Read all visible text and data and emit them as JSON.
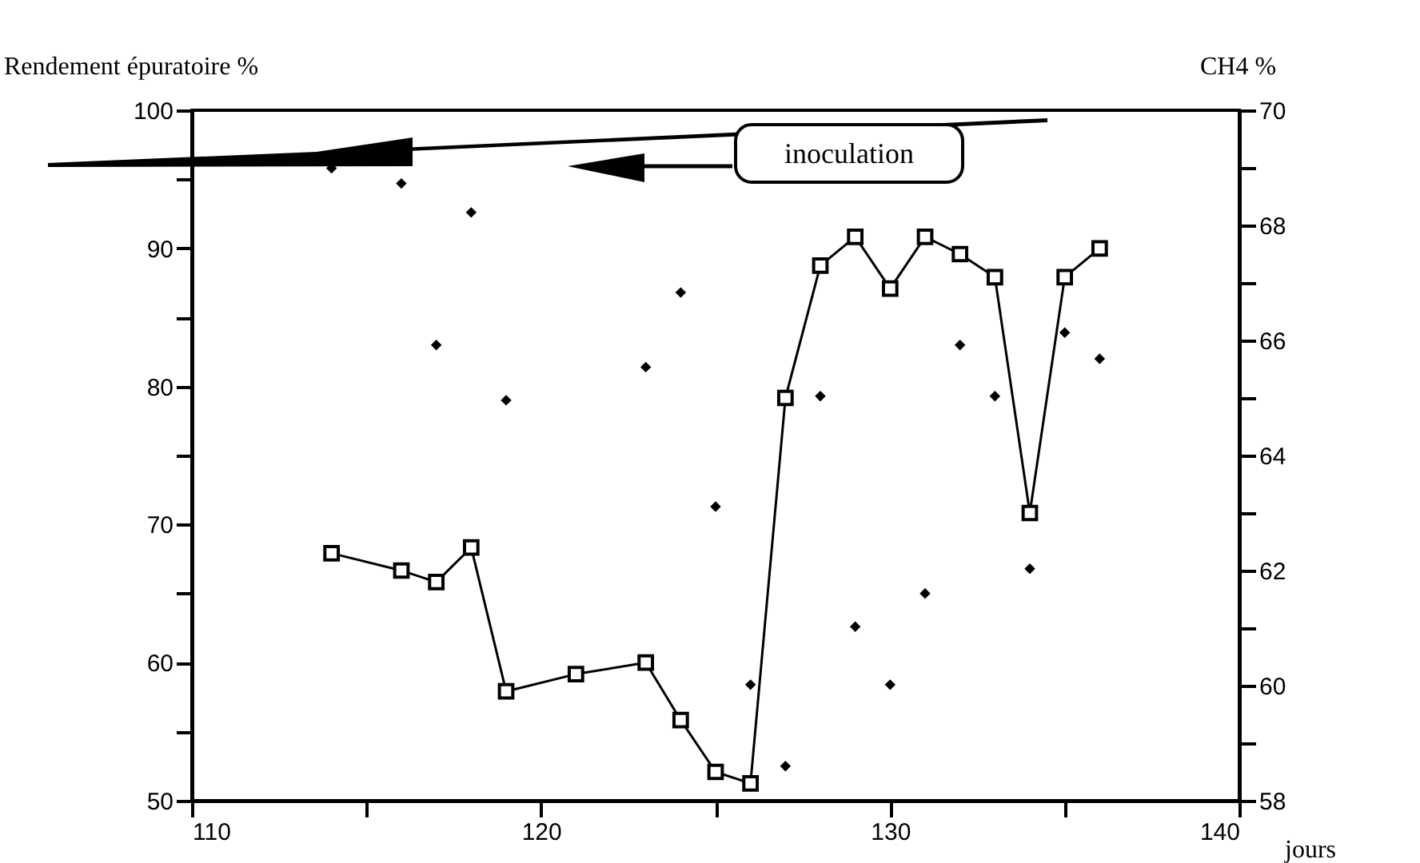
{
  "chart_data": {
    "type": "scatter",
    "xlabel": "jours",
    "ylabel": "Rendement épuratoire %",
    "y2label": "CH4 %",
    "annotations": [
      "inoculation"
    ],
    "xlim": [
      110,
      140
    ],
    "xticks": [
      110,
      {
        "value": 115,
        "label": null
      },
      120,
      {
        "value": 125,
        "label": null
      },
      130,
      {
        "value": 135,
        "label": null
      },
      140
    ],
    "ylim": [
      50,
      100
    ],
    "yticks": [
      50,
      {
        "value": 55,
        "label": null
      },
      60,
      {
        "value": 65,
        "label": null
      },
      70,
      {
        "value": 75,
        "label": null
      },
      80,
      {
        "value": 85,
        "label": null
      },
      90,
      {
        "value": 95,
        "label": null
      },
      100
    ],
    "y2lim": [
      58,
      70
    ],
    "y2ticks": [
      58,
      {
        "value": 59,
        "label": null
      },
      60,
      {
        "value": 61,
        "label": null
      },
      62,
      {
        "value": 63,
        "label": null
      },
      64,
      {
        "value": 65,
        "label": null
      },
      66,
      {
        "value": 67,
        "label": null
      },
      68,
      {
        "value": 69,
        "label": null
      },
      70
    ],
    "grid": false,
    "series": [
      {
        "marker": "diamond",
        "color": "#000000",
        "x": [
          114,
          116,
          117,
          118,
          119,
          123,
          124,
          125,
          126,
          127,
          128,
          129,
          130,
          131,
          132,
          133,
          134,
          135,
          136
        ],
        "values": [
          95.8,
          94.7,
          83.0,
          92.6,
          79.0,
          81.4,
          86.8,
          71.3,
          58.4,
          52.5,
          79.3,
          62.6,
          58.4,
          65.0,
          83.0,
          79.3,
          66.8,
          83.9,
          82.0
        ]
      },
      {
        "type": "line",
        "axis": "y2",
        "marker": "square",
        "line_style": "solid",
        "color": "#000000",
        "x": [
          114,
          116,
          117,
          118,
          119,
          121,
          123,
          124,
          125,
          126,
          127,
          128,
          129,
          130,
          131,
          132,
          133,
          134,
          135,
          136
        ],
        "values": [
          62.3,
          62.0,
          61.8,
          62.4,
          59.9,
          60.2,
          60.4,
          59.4,
          58.5,
          58.3,
          65.0,
          67.3,
          67.8,
          66.9,
          67.8,
          67.5,
          67.1,
          63.0,
          67.1,
          67.6
        ]
      }
    ]
  }
}
